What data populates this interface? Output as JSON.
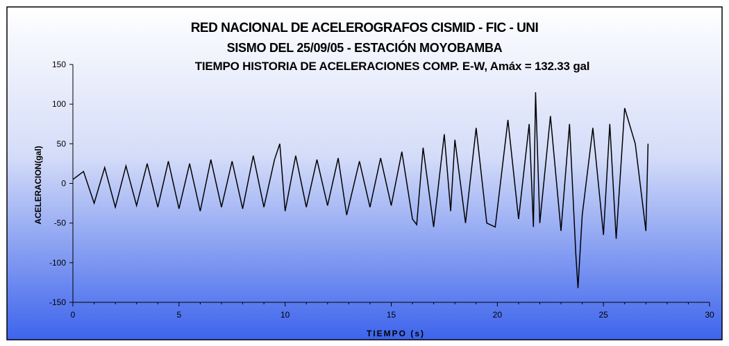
{
  "colors": {
    "frame": "#000000",
    "bg_top": "#ffffff",
    "bg_bottom": "#3d64ec",
    "series": "#000000"
  },
  "chart_data": {
    "type": "line",
    "title": "RED NACIONAL DE ACELEROGRAFOS CISMID - FIC - UNI",
    "subtitle": "SISMO DEL 25/09/05 - ESTACIÓN MOYOBAMBA",
    "subtitle2": "TIEMPO HISTORIA DE ACELERACIONES COMP. E-W, Amáx = 132.33 gal",
    "xlabel": "TIEMPO (s)",
    "ylabel": "ACELERACION(gal)",
    "xlim": [
      0,
      30
    ],
    "ylim": [
      -150,
      150
    ],
    "xticks": [
      "0",
      "5",
      "10",
      "15",
      "20",
      "25",
      "30"
    ],
    "yticks": [
      "150",
      "100",
      "50",
      "0",
      "-50",
      "-100",
      "-150"
    ],
    "grid": false,
    "legend": "none",
    "series": [
      {
        "x": [
          0,
          0.5,
          1.0,
          1.5,
          2.0,
          2.5,
          3.0,
          3.5,
          4.0,
          4.5,
          5.0,
          5.5,
          6.0,
          6.5,
          7.0,
          7.5,
          8.0,
          8.5,
          9.0,
          9.5,
          9.75,
          10.0,
          10.5,
          11.0,
          11.5,
          12.0,
          12.5,
          12.9,
          13.5,
          14.0,
          14.5,
          15.0,
          15.5,
          16.0,
          16.2,
          16.5,
          17.0,
          17.5,
          17.8,
          18.0,
          18.5,
          19.0,
          19.5,
          19.9,
          20.5,
          21.0,
          21.5,
          21.7,
          21.8,
          22.0,
          22.5,
          23.0,
          23.4,
          23.7,
          23.8,
          24.0,
          24.5,
          25.0,
          25.3,
          25.6,
          26.0,
          26.5,
          27.0,
          27.1
        ],
        "y": [
          5,
          15,
          -25,
          20,
          -30,
          22,
          -28,
          25,
          -30,
          28,
          -32,
          25,
          -35,
          30,
          -30,
          28,
          -32,
          35,
          -30,
          30,
          50,
          -35,
          35,
          -30,
          30,
          -28,
          32,
          -40,
          28,
          -30,
          32,
          -28,
          40,
          -45,
          -52,
          45,
          -55,
          62,
          -35,
          55,
          -50,
          70,
          -50,
          -55,
          80,
          -45,
          75,
          -55,
          115,
          -50,
          85,
          -60,
          75,
          -90,
          -132,
          -40,
          70,
          -65,
          75,
          -70,
          95,
          50,
          -60,
          50
        ]
      }
    ]
  }
}
